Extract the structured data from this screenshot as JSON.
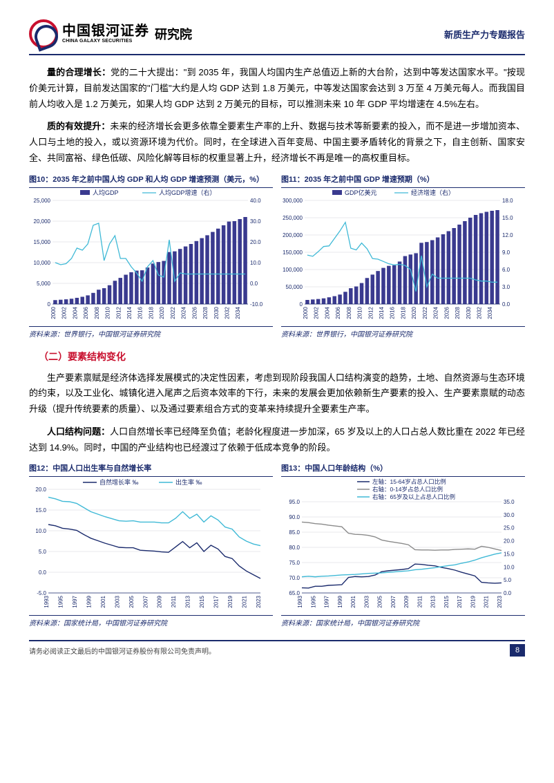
{
  "header": {
    "brand_cn": "中国银河证券",
    "brand_en": "CHINA GALAXY SECURITIES",
    "dept": "研究院",
    "report_type": "新质生产力专题报告"
  },
  "paragraphs": {
    "p1_lead": "量的合理增长：",
    "p1": "党的二十大提出：\"到 2035 年，我国人均国内生产总值迈上新的大台阶，达到中等发达国家水平。\"按现价美元计算，目前发达国家的\"门槛\"大约是人均 GDP 达到 1.8 万美元，中等发达国家会达到 3 万至 4 万美元每人。而我国目前人均收入是 1.2 万美元，如果人均 GDP 达到 2 万美元的目标，可以推测未来 10 年 GDP 平均增速在 4.5%左右。",
    "p2_lead": "质的有效提升：",
    "p2": "未来的经济增长会更多依靠全要素生产率的上升、数据与技术等新要素的投入，而不是进一步增加资本、人口与土地的投入，或以资源环境为代价。同时，在全球进入百年变局、中国主要矛盾转化的背景之下，自主创新、国家安全、共同富裕、绿色低碳、风险化解等目标的权重显著上升，经济增长不再是唯一的高权重目标。",
    "section2": "（二）要素结构变化",
    "p3": "生产要素禀赋是经济体选择发展模式的决定性因素，考虑到现阶段我国人口结构演变的趋势，土地、自然资源与生态环境的约束，以及工业化、城镇化进入尾声之后资本效率的下行，未来的发展会更加依赖新生产要素的投入、生产要素禀赋的动态升级（提升传统要素的质量）、以及通过要素组合方式的变革来持续提升全要素生产率。",
    "p4_lead": "人口结构问题：",
    "p4": "人口自然增长率已经降至负值；老龄化程度进一步加深，65 岁及以上的人口占总人数比重在 2022 年已经达到 14.9%。同时，中国的产业结构也已经渡过了依赖于低成本竞争的阶段。"
  },
  "charts": {
    "c10": {
      "title": "图10：2035 年之前中国人均 GDP 和人均 GDP 增速预测（美元，%）",
      "source": "资料来源：世界银行，中国银河证券研究院",
      "legend_bar": "人均GDP",
      "legend_line": "人均GDP增速（右）",
      "years": [
        "2000",
        "2001",
        "2002",
        "2003",
        "2004",
        "2005",
        "2006",
        "2007",
        "2008",
        "2009",
        "2010",
        "2011",
        "2012",
        "2013",
        "2014",
        "2015",
        "2016",
        "2017",
        "2018",
        "2019",
        "2020",
        "2021",
        "2022",
        "2023",
        "2024",
        "2025",
        "2026",
        "2027",
        "2028",
        "2029",
        "2030",
        "2031",
        "2032",
        "2033",
        "2034",
        "2035"
      ],
      "bars": [
        960,
        1050,
        1150,
        1290,
        1510,
        1760,
        2100,
        2700,
        3470,
        3830,
        4550,
        5620,
        6320,
        7080,
        7680,
        8070,
        8150,
        8820,
        9770,
        10140,
        10410,
        12550,
        12720,
        13300,
        13900,
        14500,
        15200,
        15900,
        16600,
        17400,
        18200,
        19000,
        19900,
        20000,
        20500,
        21000
      ],
      "y1_ticks": [
        0,
        5000,
        10000,
        15000,
        20000,
        25000
      ],
      "line": [
        10,
        9,
        9.5,
        12,
        17,
        16,
        19,
        28,
        29,
        11,
        19,
        23,
        12,
        12,
        8,
        5,
        1,
        8,
        11,
        4,
        3,
        21,
        1,
        5,
        4.5,
        4.5,
        4.5,
        4.5,
        4.5,
        4.5,
        4.5,
        4.5,
        4.5,
        4.5,
        4.5,
        4.5
      ],
      "y2_ticks": [
        -10,
        0,
        10,
        20,
        30,
        40
      ],
      "bar_color": "#3a3a8f",
      "line_color": "#3fb9d6",
      "axis_color": "#1a2a6c"
    },
    "c11": {
      "title": "图11：2035 年之前中国 GDP 增速预期（%）",
      "source": "资料来源：世界银行，中国银河证券研究院",
      "legend_bar": "GDP亿美元",
      "legend_line": "经济增速（右）",
      "years": [
        "2000",
        "2001",
        "2002",
        "2003",
        "2004",
        "2005",
        "2006",
        "2007",
        "2008",
        "2009",
        "2010",
        "2011",
        "2012",
        "2013",
        "2014",
        "2015",
        "2016",
        "2017",
        "2018",
        "2019",
        "2020",
        "2021",
        "2022",
        "2023",
        "2024",
        "2025",
        "2026",
        "2027",
        "2028",
        "2029",
        "2030",
        "2031",
        "2032",
        "2033",
        "2034",
        "2035"
      ],
      "bars": [
        12000,
        13300,
        14700,
        16600,
        19600,
        22900,
        27500,
        35500,
        45900,
        51000,
        60900,
        75500,
        85300,
        95700,
        104800,
        110600,
        112300,
        123100,
        138900,
        143400,
        147200,
        177300,
        179600,
        185000,
        193000,
        202000,
        211000,
        220000,
        230000,
        240000,
        250000,
        258000,
        263000,
        267000,
        270000,
        272000
      ],
      "y1_ticks": [
        0,
        50000,
        100000,
        150000,
        200000,
        250000,
        300000
      ],
      "line": [
        8.5,
        8.3,
        9.1,
        10.0,
        10.1,
        11.4,
        12.7,
        14.2,
        9.7,
        9.4,
        10.6,
        9.6,
        7.9,
        7.8,
        7.4,
        7.0,
        6.8,
        6.9,
        6.7,
        6.0,
        2.2,
        8.4,
        3.0,
        5.2,
        4.5,
        4.5,
        4.5,
        4.5,
        4.5,
        4.5,
        4.5,
        4.2,
        4.0,
        4.0,
        3.8,
        3.8
      ],
      "y2_ticks": [
        0,
        3,
        6,
        9,
        12,
        15,
        18
      ],
      "bar_color": "#3a3a8f",
      "line_color": "#3fb9d6",
      "axis_color": "#1a2a6c"
    },
    "c12": {
      "title": "图12：中国人口出生率与自然增长率",
      "source": "资料来源：国家统计局，中国银河证券研究院",
      "legend_a": "自然增长率 ‰",
      "legend_b": "出生率 ‰",
      "years": [
        "1993",
        "1994",
        "1995",
        "1996",
        "1997",
        "1998",
        "1999",
        "2000",
        "2001",
        "2002",
        "2003",
        "2004",
        "2005",
        "2006",
        "2007",
        "2008",
        "2009",
        "2010",
        "2011",
        "2012",
        "2013",
        "2014",
        "2015",
        "2016",
        "2017",
        "2018",
        "2019",
        "2020",
        "2021",
        "2022",
        "2023"
      ],
      "a": [
        11.5,
        11.2,
        10.6,
        10.4,
        10.1,
        9.1,
        8.2,
        7.6,
        7.0,
        6.5,
        6.0,
        5.9,
        5.9,
        5.3,
        5.2,
        5.1,
        4.9,
        4.8,
        6.1,
        7.4,
        5.9,
        7.1,
        5.0,
        6.5,
        5.6,
        3.8,
        3.3,
        1.5,
        0.3,
        -0.6,
        -1.5
      ],
      "b": [
        18.1,
        17.7,
        17.1,
        17.0,
        16.6,
        15.6,
        14.6,
        14.0,
        13.4,
        12.9,
        12.4,
        12.3,
        12.4,
        12.1,
        12.1,
        12.1,
        11.9,
        11.9,
        13.0,
        14.6,
        13.0,
        14.0,
        12.1,
        13.6,
        12.6,
        10.9,
        10.4,
        8.5,
        7.5,
        6.8,
        6.4
      ],
      "y_ticks": [
        -5,
        0,
        5,
        10,
        15,
        20
      ],
      "color_a": "#1a2a6c",
      "color_b": "#3fb9d6"
    },
    "c13": {
      "title": "图13：中国人口年龄结构（%）",
      "source": "资料来源：国家统计局，中国银河证券研究院",
      "legend_a": "左轴：15-64岁占总人口比例",
      "legend_b": "右轴：0-14岁占总人口比例",
      "legend_c": "右轴：65岁及以上占总人口比例",
      "years": [
        "1993",
        "1994",
        "1995",
        "1996",
        "1997",
        "1998",
        "1999",
        "2000",
        "2001",
        "2002",
        "2003",
        "2004",
        "2005",
        "2006",
        "2007",
        "2008",
        "2009",
        "2010",
        "2011",
        "2012",
        "2013",
        "2014",
        "2015",
        "2016",
        "2017",
        "2018",
        "2019",
        "2020",
        "2021",
        "2022",
        "2023"
      ],
      "a": [
        66.7,
        66.6,
        67.2,
        67.2,
        67.5,
        67.6,
        67.7,
        70.1,
        70.4,
        70.3,
        70.4,
        70.9,
        72.0,
        72.3,
        72.5,
        72.7,
        73.0,
        74.5,
        74.4,
        74.1,
        73.9,
        73.4,
        73.0,
        72.5,
        71.8,
        71.2,
        70.6,
        68.5,
        68.3,
        68.2,
        68.3
      ],
      "b": [
        27.2,
        27.0,
        26.6,
        26.4,
        26.0,
        25.7,
        25.4,
        22.9,
        22.5,
        22.4,
        22.1,
        21.5,
        20.3,
        19.8,
        19.4,
        19.0,
        18.5,
        16.6,
        16.5,
        16.5,
        16.4,
        16.5,
        16.5,
        16.7,
        16.8,
        16.9,
        16.8,
        17.9,
        17.5,
        16.9,
        16.3
      ],
      "c": [
        6.2,
        6.4,
        6.2,
        6.4,
        6.5,
        6.7,
        6.9,
        7.0,
        7.1,
        7.3,
        7.5,
        7.6,
        7.7,
        7.9,
        8.1,
        8.3,
        8.5,
        8.9,
        9.1,
        9.4,
        9.7,
        10.1,
        10.5,
        10.8,
        11.4,
        11.9,
        12.6,
        13.5,
        14.2,
        14.9,
        15.4
      ],
      "y1_ticks": [
        65,
        70,
        75,
        80,
        85,
        90,
        95
      ],
      "y2_ticks": [
        0,
        5,
        10,
        15,
        20,
        25,
        30,
        35
      ],
      "color_a": "#1a2a6c",
      "color_b": "#8a8a8a",
      "color_c": "#3fb9d6"
    }
  },
  "footer": {
    "disclaimer": "请务必阅读正文最后的中国银河证券股份有限公司免责声明。",
    "page": "8"
  }
}
